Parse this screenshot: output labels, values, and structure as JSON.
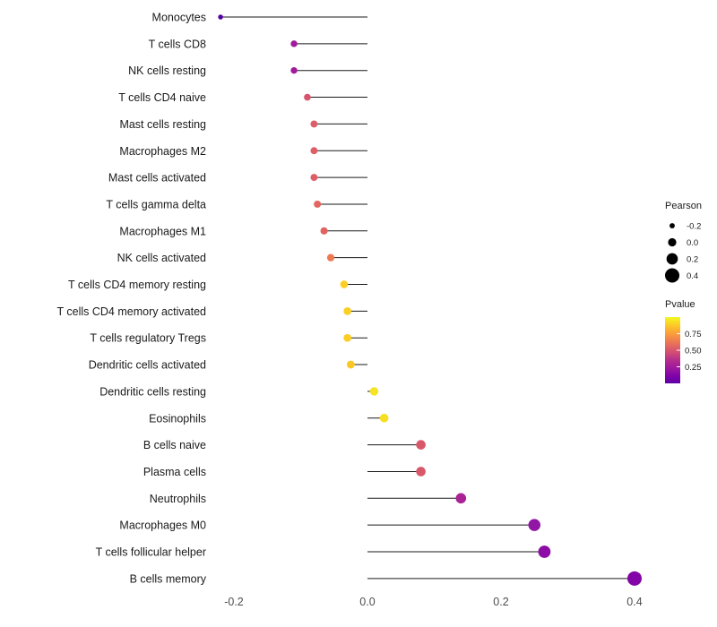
{
  "chart_data": {
    "type": "scatter",
    "subtype": "lollipop",
    "title": "",
    "xlabel": "",
    "ylabel": "",
    "xlim": [
      -0.27,
      0.45
    ],
    "grid": false,
    "categories": [
      "Monocytes",
      "T cells CD8",
      "NK cells resting",
      "T cells CD4 naive",
      "Mast cells resting",
      "Macrophages M2",
      "Mast cells activated",
      "T cells gamma delta",
      "Macrophages M1",
      "NK cells activated",
      "T cells CD4 memory resting",
      "T cells CD4 memory activated",
      "T cells regulatory  Tregs",
      "Dendritic cells activated",
      "Dendritic cells resting",
      "Eosinophils",
      "B cells naive",
      "Plasma cells",
      "Neutrophils",
      "Macrophages M0",
      "T cells follicular helper",
      "B cells memory"
    ],
    "series": [
      {
        "name": "Pearson",
        "values": [
          -0.22,
          -0.11,
          -0.11,
          -0.09,
          -0.08,
          -0.08,
          -0.08,
          -0.075,
          -0.065,
          -0.055,
          -0.035,
          -0.03,
          -0.03,
          -0.025,
          0.01,
          0.025,
          0.08,
          0.08,
          0.14,
          0.25,
          0.265,
          0.4
        ]
      }
    ],
    "pvalues": [
      0.15,
      0.33,
      0.33,
      0.55,
      0.57,
      0.57,
      0.57,
      0.6,
      0.58,
      0.65,
      0.85,
      0.85,
      0.85,
      0.82,
      0.92,
      0.9,
      0.52,
      0.52,
      0.35,
      0.2,
      0.2,
      0.1
    ],
    "point_colors": [
      "#5601a4",
      "#a01a9c",
      "#a01a9c",
      "#d6556d",
      "#dd5e66",
      "#dd5e66",
      "#dd5e66",
      "#e26561",
      "#e06360",
      "#ed7953",
      "#fcce25",
      "#fcce25",
      "#fccd25",
      "#fbc724",
      "#f4e423",
      "#f6df22",
      "#d9576a",
      "#d9576a",
      "#aa2395",
      "#9016a3",
      "#8c0ca5",
      "#8405a7"
    ],
    "xticks": [
      -0.2,
      0.0,
      0.2,
      0.4
    ],
    "xtick_labels": [
      "-0.2",
      "0.0",
      "0.2",
      "0.4"
    ],
    "stem_color": "#1a1a1a",
    "legend": {
      "position": "right",
      "size_title": "Pearson",
      "size_values": [
        -0.2,
        0.0,
        0.2,
        0.4
      ],
      "size_labels": [
        "-0.2",
        "0.0",
        "0.2",
        "0.4"
      ],
      "size_dot_color": "#000000",
      "color_title": "Pvalue",
      "color_labels": [
        "0.75",
        "0.50",
        "0.25"
      ],
      "color_scale": [
        "#f0f921",
        "#fcce25",
        "#fca636",
        "#f2844b",
        "#e16462",
        "#cc4778",
        "#b12a90",
        "#9c179e",
        "#7e03a8",
        "#5f01a6"
      ]
    }
  }
}
